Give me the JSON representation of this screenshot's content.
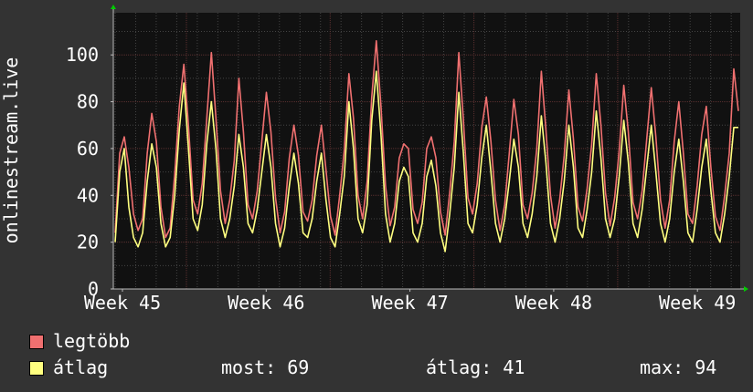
{
  "chart_data": {
    "type": "line",
    "ylabel": "onlinestream.live",
    "ylim": [
      0,
      118
    ],
    "yticks": [
      0,
      20,
      40,
      60,
      80,
      100
    ],
    "xticks": [
      "Week 45",
      "Week 46",
      "Week 47",
      "Week 48",
      "Week 49"
    ],
    "grid": true,
    "series": [
      {
        "name": "legtöbb",
        "color": "#F07070",
        "values": [
          24,
          58,
          65,
          52,
          32,
          25,
          30,
          58,
          75,
          63,
          35,
          22,
          26,
          49,
          78,
          96,
          70,
          38,
          32,
          45,
          73,
          101,
          73,
          42,
          28,
          38,
          55,
          90,
          67,
          36,
          30,
          42,
          63,
          84,
          67,
          39,
          24,
          33,
          56,
          70,
          57,
          33,
          29,
          38,
          57,
          70,
          51,
          31,
          23,
          40,
          59,
          92,
          73,
          40,
          30,
          46,
          82,
          106,
          78,
          44,
          27,
          35,
          56,
          62,
          60,
          34,
          28,
          37,
          60,
          65,
          56,
          33,
          23,
          41,
          63,
          101,
          72,
          39,
          32,
          45,
          69,
          82,
          63,
          38,
          25,
          36,
          58,
          81,
          66,
          36,
          30,
          41,
          60,
          93,
          68,
          40,
          26,
          38,
          57,
          85,
          64,
          35,
          29,
          43,
          62,
          92,
          70,
          41,
          27,
          39,
          59,
          87,
          67,
          37,
          30,
          42,
          64,
          86,
          65,
          38,
          26,
          38,
          63,
          80,
          58,
          32,
          28,
          44,
          66,
          78,
          52,
          31,
          25,
          40,
          58,
          94,
          76
        ]
      },
      {
        "name": "átlag",
        "color": "#FFFF80",
        "values": [
          20,
          50,
          60,
          35,
          22,
          18,
          24,
          46,
          62,
          52,
          28,
          18,
          22,
          40,
          68,
          88,
          60,
          30,
          25,
          36,
          62,
          80,
          60,
          30,
          22,
          30,
          44,
          66,
          52,
          28,
          24,
          34,
          50,
          66,
          52,
          28,
          18,
          26,
          44,
          58,
          45,
          24,
          22,
          30,
          46,
          58,
          38,
          22,
          18,
          32,
          48,
          80,
          60,
          30,
          24,
          36,
          72,
          93,
          66,
          32,
          20,
          28,
          46,
          52,
          48,
          24,
          20,
          28,
          48,
          55,
          44,
          24,
          16,
          32,
          52,
          84,
          58,
          28,
          24,
          36,
          56,
          70,
          50,
          28,
          20,
          30,
          46,
          64,
          52,
          28,
          22,
          32,
          48,
          74,
          54,
          28,
          20,
          30,
          46,
          70,
          52,
          26,
          22,
          34,
          50,
          76,
          56,
          30,
          22,
          30,
          48,
          72,
          54,
          28,
          22,
          34,
          52,
          70,
          50,
          28,
          20,
          30,
          50,
          64,
          46,
          24,
          20,
          34,
          52,
          64,
          42,
          24,
          20,
          32,
          48,
          69,
          69
        ]
      }
    ]
  },
  "legend": {
    "items": [
      {
        "label": "legtöbb",
        "color": "#F07070"
      },
      {
        "label": "átlag",
        "color": "#FFFF80"
      }
    ],
    "stats": {
      "current": "most: 69",
      "average": "átlag: 41",
      "maximum": "max: 94"
    }
  },
  "colors": {
    "background": "#333333",
    "plot_background": "#111111",
    "grid_major": "#5A3030",
    "grid_minor": "#444444",
    "axis_arrow": "#00CC00"
  }
}
